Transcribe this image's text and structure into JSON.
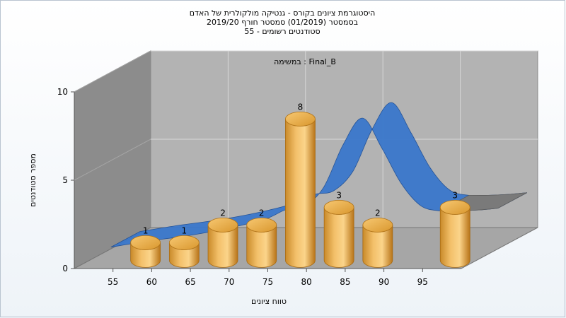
{
  "chart_data": {
    "type": "bar",
    "title_lines": [
      "היסטוגרמת ציונים בקורס - גנטיקה מולקולרית של האדם",
      "בסמסטר  (01/2019)  סמסטר חורף 2019/20",
      "סטודנטים רשומים - 55"
    ],
    "annotation": "במשימה : Final_B",
    "xlabel": "טווח ציונים",
    "ylabel": "מספר סטודנטים",
    "x_ticks": [
      "55",
      "60",
      "65",
      "70",
      "75",
      "80",
      "85",
      "90",
      "95"
    ],
    "y_ticks": [
      "0",
      "5",
      "10"
    ],
    "ylim": [
      0,
      10
    ],
    "x_range": [
      50,
      100
    ],
    "bins": [
      52.5,
      57.5,
      62.5,
      67.5,
      72.5,
      77.5,
      82.5,
      87.5,
      92.5,
      97.5
    ],
    "series": [
      {
        "type": "bar",
        "x": [
          57.5,
          62.5,
          67.5,
          72.5,
          77.5,
          82.5,
          87.5,
          97.5
        ],
        "values": [
          1,
          1,
          2,
          2,
          8,
          3,
          2,
          3
        ],
        "labels": [
          "1",
          "1",
          "2",
          "2",
          "8",
          "3",
          "2",
          "3"
        ]
      },
      {
        "type": "line",
        "x": [
          50,
          55,
          60,
          65,
          70,
          72.5,
          75,
          77.5,
          80,
          82.5,
          85,
          87.5,
          90,
          92.5,
          95,
          97.5,
          100
        ],
        "values": [
          0.1,
          0.45,
          0.75,
          1.15,
          1.7,
          2.2,
          2.4,
          3.5,
          5.9,
          7.4,
          5.7,
          3.7,
          2.45,
          2.15,
          2.15,
          2.2,
          2.3
        ]
      }
    ],
    "colors": {
      "bar_light": "#fbd48a",
      "bar_mid": "#e8a840",
      "bar_dark": "#b87418",
      "line": "#3a78cc",
      "line_dark": "#1f4f96",
      "back_wall": "#b3b3b3",
      "side_wall": "#8c8c8c",
      "floor": "#a6a6a6",
      "grid": "#d8d8d8"
    }
  }
}
